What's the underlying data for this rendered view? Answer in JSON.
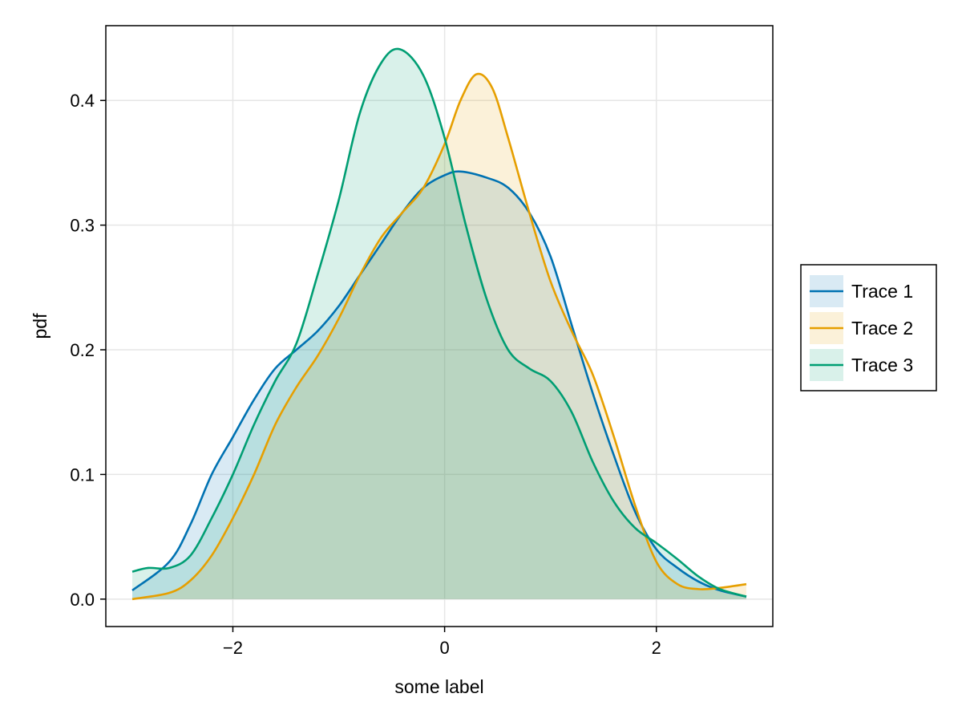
{
  "chart_data": {
    "type": "area",
    "xlabel": "some label",
    "ylabel": "pdf",
    "xlim": [
      -3.2,
      3.1
    ],
    "ylim": [
      -0.022,
      0.46
    ],
    "x_ticks": [
      -2,
      0,
      2
    ],
    "x_tick_labels": [
      "−2",
      "0",
      "2"
    ],
    "y_ticks": [
      0.0,
      0.1,
      0.2,
      0.3,
      0.4
    ],
    "y_tick_labels": [
      "0.0",
      "0.1",
      "0.2",
      "0.3",
      "0.4"
    ],
    "grid": true,
    "legend_position": "right",
    "series": [
      {
        "name": "Trace 1",
        "color": "#0072B2",
        "points": [
          [
            -2.95,
            0.007
          ],
          [
            -2.6,
            0.03
          ],
          [
            -2.4,
            0.06
          ],
          [
            -2.2,
            0.1
          ],
          [
            -2.0,
            0.13
          ],
          [
            -1.8,
            0.16
          ],
          [
            -1.6,
            0.185
          ],
          [
            -1.4,
            0.2
          ],
          [
            -1.2,
            0.215
          ],
          [
            -1.0,
            0.235
          ],
          [
            -0.8,
            0.26
          ],
          [
            -0.6,
            0.285
          ],
          [
            -0.4,
            0.31
          ],
          [
            -0.2,
            0.33
          ],
          [
            0.0,
            0.34
          ],
          [
            0.15,
            0.343
          ],
          [
            0.4,
            0.338
          ],
          [
            0.6,
            0.33
          ],
          [
            0.8,
            0.31
          ],
          [
            1.0,
            0.275
          ],
          [
            1.2,
            0.22
          ],
          [
            1.4,
            0.165
          ],
          [
            1.6,
            0.115
          ],
          [
            1.8,
            0.07
          ],
          [
            2.0,
            0.04
          ],
          [
            2.2,
            0.025
          ],
          [
            2.4,
            0.014
          ],
          [
            2.6,
            0.007
          ],
          [
            2.85,
            0.002
          ]
        ]
      },
      {
        "name": "Trace 2",
        "color": "#E69F00",
        "points": [
          [
            -2.95,
            0.0
          ],
          [
            -2.6,
            0.005
          ],
          [
            -2.4,
            0.015
          ],
          [
            -2.2,
            0.035
          ],
          [
            -2.0,
            0.065
          ],
          [
            -1.8,
            0.1
          ],
          [
            -1.6,
            0.14
          ],
          [
            -1.4,
            0.17
          ],
          [
            -1.2,
            0.195
          ],
          [
            -1.0,
            0.225
          ],
          [
            -0.8,
            0.26
          ],
          [
            -0.6,
            0.29
          ],
          [
            -0.4,
            0.31
          ],
          [
            -0.2,
            0.33
          ],
          [
            0.0,
            0.365
          ],
          [
            0.15,
            0.4
          ],
          [
            0.3,
            0.421
          ],
          [
            0.45,
            0.41
          ],
          [
            0.6,
            0.37
          ],
          [
            0.8,
            0.31
          ],
          [
            1.0,
            0.255
          ],
          [
            1.2,
            0.215
          ],
          [
            1.4,
            0.18
          ],
          [
            1.6,
            0.13
          ],
          [
            1.8,
            0.075
          ],
          [
            2.0,
            0.03
          ],
          [
            2.2,
            0.012
          ],
          [
            2.4,
            0.008
          ],
          [
            2.6,
            0.009
          ],
          [
            2.85,
            0.012
          ]
        ]
      },
      {
        "name": "Trace 3",
        "color": "#009E73",
        "points": [
          [
            -2.95,
            0.022
          ],
          [
            -2.8,
            0.025
          ],
          [
            -2.6,
            0.025
          ],
          [
            -2.4,
            0.035
          ],
          [
            -2.2,
            0.065
          ],
          [
            -2.0,
            0.1
          ],
          [
            -1.8,
            0.14
          ],
          [
            -1.6,
            0.175
          ],
          [
            -1.4,
            0.205
          ],
          [
            -1.2,
            0.26
          ],
          [
            -1.0,
            0.32
          ],
          [
            -0.8,
            0.39
          ],
          [
            -0.6,
            0.43
          ],
          [
            -0.42,
            0.441
          ],
          [
            -0.2,
            0.42
          ],
          [
            0.0,
            0.37
          ],
          [
            0.2,
            0.3
          ],
          [
            0.4,
            0.24
          ],
          [
            0.6,
            0.2
          ],
          [
            0.8,
            0.185
          ],
          [
            1.0,
            0.175
          ],
          [
            1.2,
            0.15
          ],
          [
            1.4,
            0.11
          ],
          [
            1.6,
            0.078
          ],
          [
            1.8,
            0.057
          ],
          [
            2.0,
            0.045
          ],
          [
            2.2,
            0.032
          ],
          [
            2.4,
            0.018
          ],
          [
            2.6,
            0.008
          ],
          [
            2.85,
            0.002
          ]
        ]
      }
    ]
  }
}
